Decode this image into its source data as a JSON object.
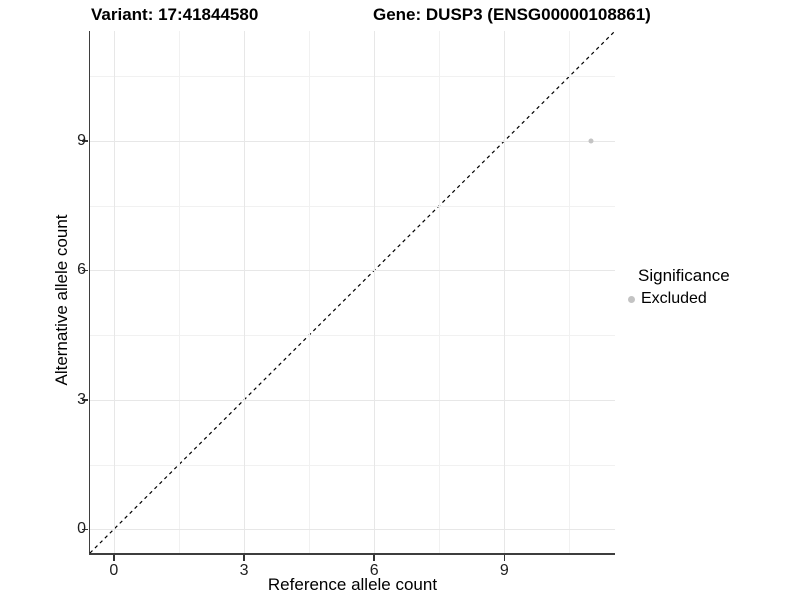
{
  "titles": {
    "variant": "Variant: 17:41844580",
    "gene": "Gene: DUSP3 (ENSG00000108861)"
  },
  "chart_data": {
    "type": "scatter",
    "title_left": "Variant: 17:41844580",
    "title_right": "Gene: DUSP3 (ENSG00000108861)",
    "xlabel": "Reference allele count",
    "ylabel": "Alternative allele count",
    "xlim": [
      -0.55,
      11.55
    ],
    "ylim": [
      -0.55,
      11.55
    ],
    "x_ticks": [
      0,
      3,
      6,
      9
    ],
    "y_ticks": [
      0,
      3,
      6,
      9
    ],
    "x_minor_ticks": [
      1.5,
      4.5,
      7.5,
      10.5
    ],
    "y_minor_ticks": [
      1.5,
      4.5,
      7.5,
      10.5
    ],
    "grid": true,
    "points": [
      {
        "x": 11,
        "y": 9,
        "series": "Excluded"
      }
    ],
    "reference_line": {
      "type": "identity",
      "style": "dashed",
      "from": [
        -0.55,
        -0.55
      ],
      "to": [
        11.55,
        11.55
      ]
    },
    "legend": {
      "title": "Significance",
      "position": "right",
      "entries": [
        {
          "label": "Excluded",
          "color": "#c3c3c3"
        }
      ]
    },
    "colors": {
      "point": "#c4c4c4",
      "grid_major": "#e7e7e7",
      "grid_minor": "#f1f1f1",
      "axis": "#3e3e3e",
      "dashed_line": "#000000"
    }
  }
}
